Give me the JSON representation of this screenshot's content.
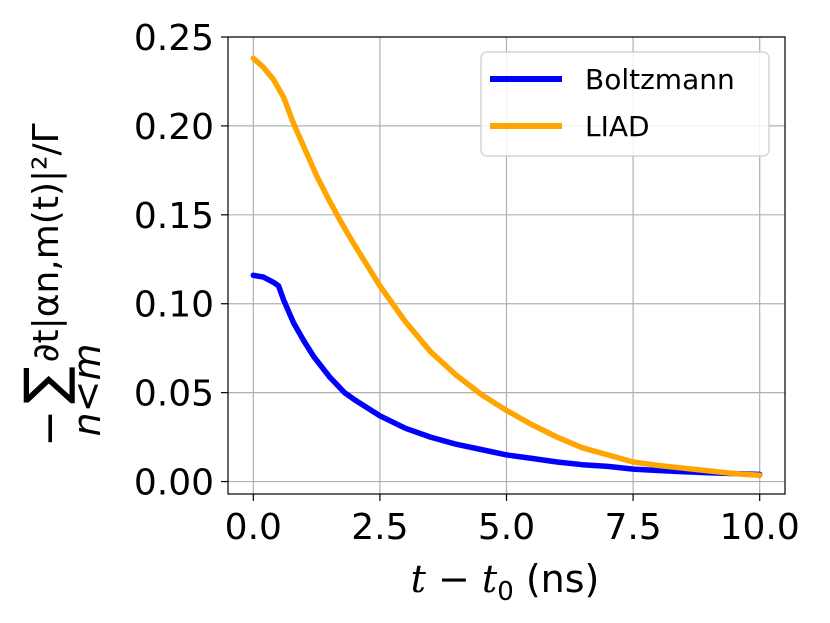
{
  "chart_data": {
    "type": "line",
    "xlabel": "t − t₀ (ns)",
    "ylabel": "− Σₙ₍ₙ<ₘ₎ ∂ₜ|αₙ,ₘ(t)|²/Γ",
    "ylabel_parts": {
      "minus": "−",
      "sigma": "∑",
      "sub": "n<m",
      "body": "∂t|αn,m(t)|²/Γ"
    },
    "xlim": [
      -0.5,
      10.5
    ],
    "ylim": [
      -0.007,
      0.25
    ],
    "xticks": [
      0.0,
      2.5,
      5.0,
      7.5,
      10.0
    ],
    "xtick_labels": [
      "0.0",
      "2.5",
      "5.0",
      "7.5",
      "10.0"
    ],
    "yticks": [
      0.0,
      0.05,
      0.1,
      0.15,
      0.2,
      0.25
    ],
    "ytick_labels": [
      "0.00",
      "0.05",
      "0.10",
      "0.15",
      "0.20",
      "0.25"
    ],
    "grid": true,
    "legend_position": "top-right",
    "series": [
      {
        "name": "Boltzmann",
        "color": "#0000ff",
        "x": [
          0.0,
          0.2,
          0.4,
          0.5,
          0.6,
          0.8,
          1.0,
          1.2,
          1.5,
          1.8,
          2.0,
          2.5,
          3.0,
          3.5,
          4.0,
          4.5,
          5.0,
          5.5,
          6.0,
          6.5,
          7.0,
          7.5,
          8.0,
          8.5,
          9.0,
          9.5,
          10.0
        ],
        "y": [
          0.116,
          0.115,
          0.112,
          0.11,
          0.102,
          0.089,
          0.079,
          0.07,
          0.059,
          0.05,
          0.046,
          0.037,
          0.03,
          0.025,
          0.021,
          0.018,
          0.015,
          0.013,
          0.011,
          0.0095,
          0.0085,
          0.007,
          0.0062,
          0.0055,
          0.005,
          0.0045,
          0.004
        ]
      },
      {
        "name": "LIAD",
        "color": "#ffa500",
        "x": [
          0.0,
          0.2,
          0.4,
          0.6,
          0.8,
          1.0,
          1.25,
          1.5,
          1.75,
          2.0,
          2.5,
          3.0,
          3.5,
          4.0,
          4.5,
          5.0,
          5.5,
          6.0,
          6.5,
          7.0,
          7.5,
          8.0,
          8.5,
          9.0,
          9.5,
          10.0
        ],
        "y": [
          0.238,
          0.233,
          0.226,
          0.216,
          0.201,
          0.188,
          0.172,
          0.158,
          0.145,
          0.133,
          0.11,
          0.09,
          0.073,
          0.06,
          0.049,
          0.04,
          0.032,
          0.025,
          0.019,
          0.015,
          0.011,
          0.009,
          0.0075,
          0.006,
          0.0045,
          0.0035
        ]
      }
    ]
  }
}
